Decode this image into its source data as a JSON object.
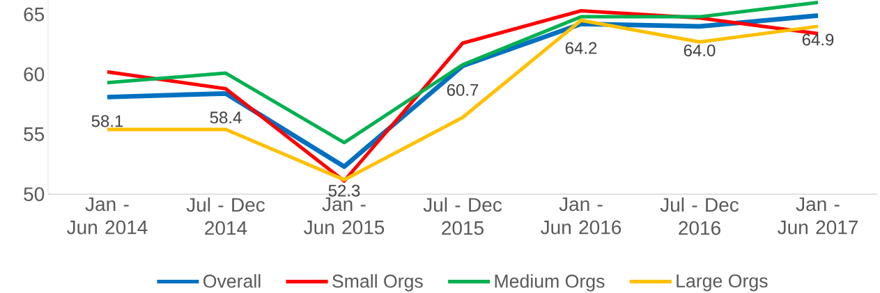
{
  "chart_data": {
    "type": "line",
    "categories": [
      "Jan - Jun 2014",
      "Jul - Dec 2014",
      "Jan - Jun 2015",
      "Jul - Dec 2015",
      "Jan - Jun 2016",
      "Jul - Dec 2016",
      "Jan - Jun 2017"
    ],
    "series": [
      {
        "name": "Overall",
        "color": "#0070c0",
        "values": [
          58.1,
          58.4,
          52.3,
          60.7,
          64.2,
          64.0,
          64.9
        ],
        "value_labels": [
          "58.1",
          "58.4",
          "52.3",
          "60.7",
          "64.2",
          "64.0",
          "64.9"
        ]
      },
      {
        "name": "Small Orgs",
        "color": "#ff0000",
        "values": [
          60.2,
          58.8,
          51.1,
          62.6,
          65.3,
          64.7,
          63.4
        ]
      },
      {
        "name": "Medium Orgs",
        "color": "#00b050",
        "values": [
          59.3,
          60.1,
          54.3,
          60.8,
          64.8,
          64.8,
          66.0
        ]
      },
      {
        "name": "Large Orgs",
        "color": "#ffc000",
        "values": [
          55.4,
          55.4,
          51.2,
          56.4,
          64.5,
          62.7,
          64.0
        ]
      }
    ],
    "ylim": [
      50,
      66.2
    ],
    "yticks": [
      50,
      55,
      60,
      65
    ],
    "grid": false,
    "legend": "bottom"
  }
}
